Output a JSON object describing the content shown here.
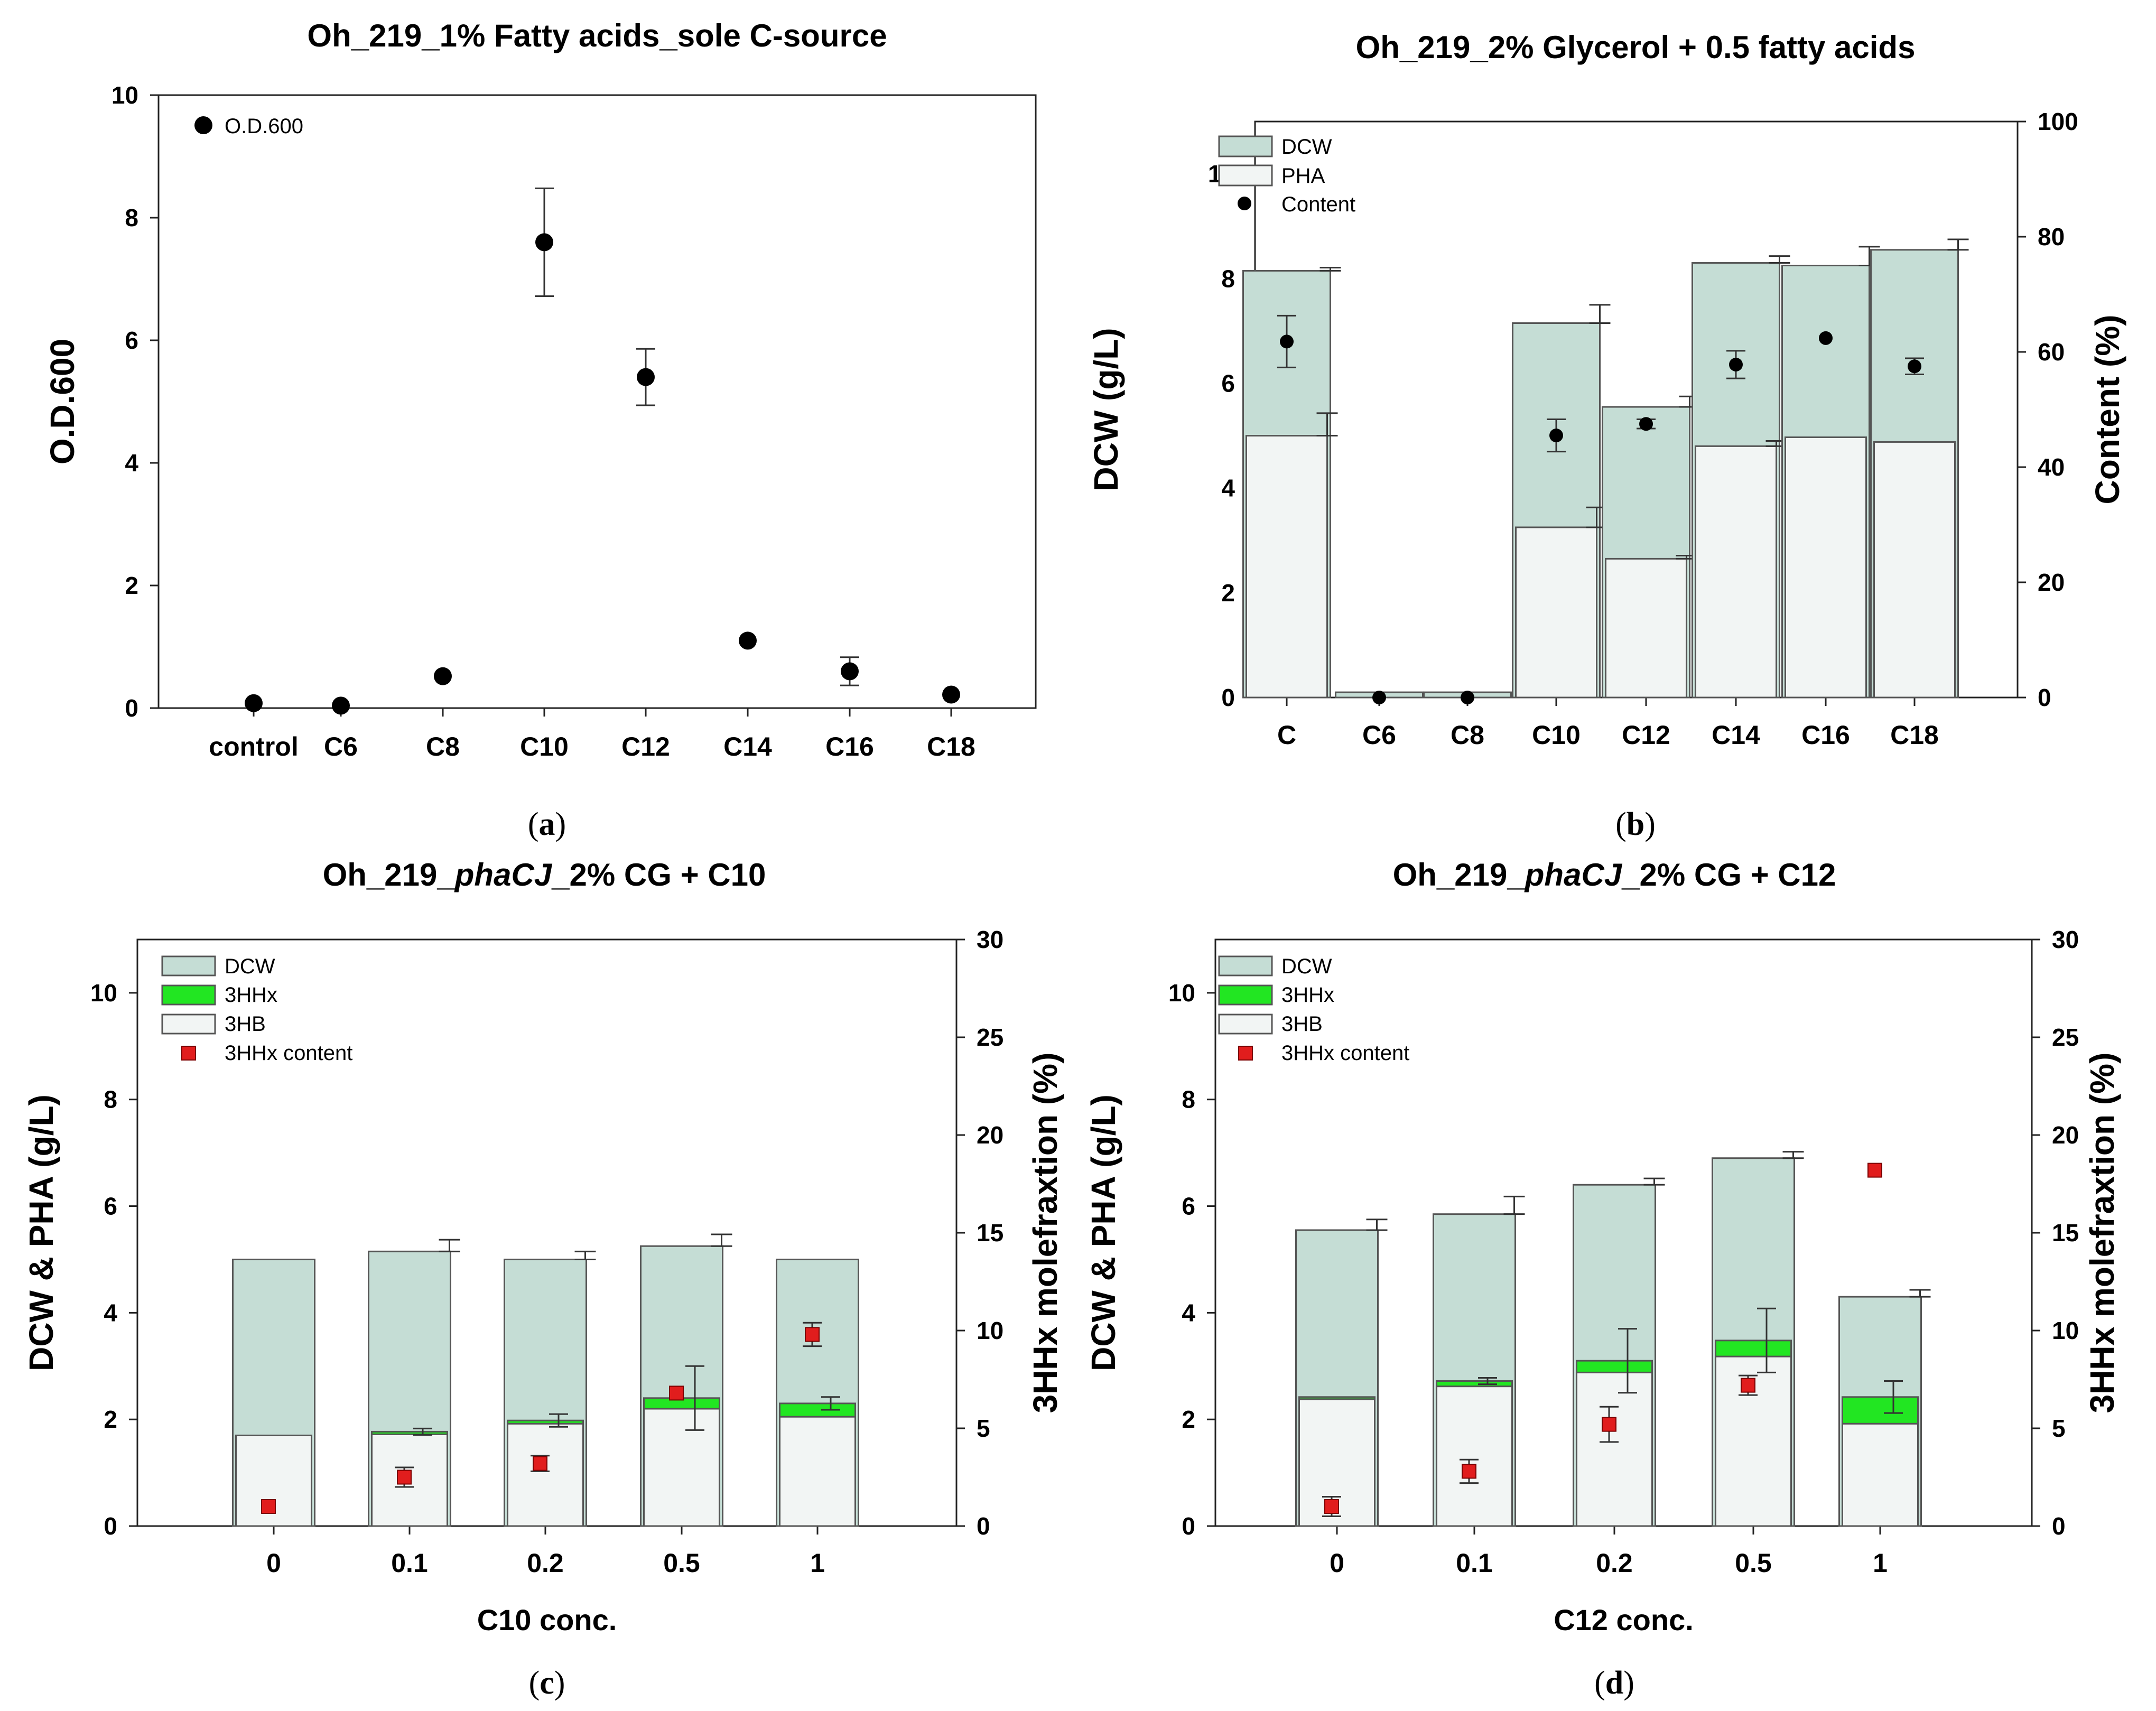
{
  "chart_data": [
    {
      "id": "a",
      "type": "scatter",
      "title": "Oh_219_1% Fatty acids_sole C-source",
      "caption": {
        "open": "(",
        "letter": "a",
        "close": ")"
      },
      "ylabel": "O.D.600",
      "xlabel": "",
      "ylim": [
        0,
        10
      ],
      "yticks": [
        "0",
        "2",
        "4",
        "6",
        "8",
        "10"
      ],
      "categories": [
        "control",
        "C6",
        "C8",
        "C10",
        "C12",
        "C14",
        "C16",
        "C18"
      ],
      "legend": [
        "O.D.600"
      ],
      "series": [
        {
          "name": "O.D.600",
          "values": [
            0.08,
            0.04,
            0.52,
            7.6,
            5.4,
            1.1,
            0.6,
            0.22
          ],
          "errors": [
            0.05,
            0.03,
            0.07,
            0.88,
            0.46,
            0.06,
            0.23,
            0.04
          ]
        }
      ]
    },
    {
      "id": "b",
      "type": "bar",
      "title": "Oh_219_2% Glycerol + 0.5 fatty acids",
      "caption": {
        "open": "(",
        "letter": "b",
        "close": ")"
      },
      "ylabel": "DCW (g/L)",
      "y2label": "Content (%)",
      "xlabel": "",
      "ylim": [
        0,
        11
      ],
      "y2lim": [
        0,
        100
      ],
      "yticks": [
        "0",
        "2",
        "4",
        "6",
        "8",
        "10"
      ],
      "y2ticks": [
        "0",
        "20",
        "40",
        "60",
        "80",
        "100"
      ],
      "categories": [
        "C",
        "C6",
        "C8",
        "C10",
        "C12",
        "C14",
        "C16",
        "C18"
      ],
      "legend": [
        "DCW",
        "PHA",
        "Content"
      ],
      "series": [
        {
          "name": "DCW",
          "values": [
            8.15,
            0.1,
            0.1,
            7.15,
            5.55,
            8.3,
            8.25,
            8.55
          ],
          "errors": [
            0.06,
            0,
            0,
            0.35,
            0.2,
            0.13,
            0.36,
            0.2
          ]
        },
        {
          "name": "PHA",
          "values": [
            5.0,
            0,
            0,
            3.25,
            2.65,
            4.8,
            4.97,
            4.88
          ],
          "errors": [
            0.43,
            0,
            0,
            0.38,
            0.06,
            0.1,
            0,
            0
          ]
        },
        {
          "name": "Content",
          "axis": "right",
          "values": [
            61.8,
            0,
            0,
            45.5,
            47.5,
            57.8,
            62.4,
            57.5
          ],
          "errors": [
            4.5,
            0,
            0,
            2.8,
            0.8,
            2.4,
            0,
            1.4
          ]
        }
      ]
    },
    {
      "id": "c",
      "type": "bar",
      "title_parts": [
        "Oh_219_",
        "phaCJ",
        "_2% CG + C10"
      ],
      "caption": {
        "open": "(",
        "letter": "c",
        "close": ")"
      },
      "ylabel": "DCW & PHA (g/L)",
      "y2label": "3HHx molefraxtion (%)",
      "xlabel": "C10 conc.",
      "ylim": [
        0,
        11
      ],
      "y2lim": [
        0,
        30
      ],
      "yticks": [
        "0",
        "2",
        "4",
        "6",
        "8",
        "10"
      ],
      "y2ticks": [
        "0",
        "5",
        "10",
        "15",
        "20",
        "25",
        "30"
      ],
      "categories": [
        "0",
        "0.1",
        "0.2",
        "0.5",
        "1"
      ],
      "legend": [
        "DCW",
        "3HHx",
        "3HB",
        "3HHx content"
      ],
      "series": [
        {
          "name": "DCW",
          "values": [
            5.0,
            5.15,
            5.0,
            5.25,
            5.0
          ],
          "errors": [
            0,
            0.22,
            0.15,
            0.22,
            0
          ]
        },
        {
          "name": "3HB",
          "values": [
            1.7,
            1.72,
            1.92,
            2.2,
            2.05
          ],
          "errors": [
            0,
            0,
            0,
            0.25,
            0
          ]
        },
        {
          "name": "3HHx",
          "values": [
            0,
            0.05,
            0.06,
            0.2,
            0.25
          ],
          "errors": [
            0,
            0.06,
            0.12,
            0.6,
            0.12
          ]
        },
        {
          "name": "3HHx content",
          "axis": "right",
          "values": [
            1.0,
            2.5,
            3.2,
            6.8,
            9.8
          ],
          "errors": [
            0,
            0.5,
            0.4,
            0,
            0.6
          ]
        }
      ]
    },
    {
      "id": "d",
      "type": "bar",
      "title_parts": [
        "Oh_219_",
        "phaCJ",
        "_2% CG + C12"
      ],
      "caption": {
        "open": "(",
        "letter": "d",
        "close": ")"
      },
      "ylabel": "DCW & PHA (g/L)",
      "y2label": "3HHx molefraxtion (%)",
      "xlabel": "C12 conc.",
      "ylim": [
        0,
        11
      ],
      "y2lim": [
        0,
        30
      ],
      "yticks": [
        "0",
        "2",
        "4",
        "6",
        "8",
        "10"
      ],
      "y2ticks": [
        "0",
        "5",
        "10",
        "15",
        "20",
        "25",
        "30"
      ],
      "categories": [
        "0",
        "0.1",
        "0.2",
        "0.5",
        "1"
      ],
      "legend": [
        "DCW",
        "3HHx",
        "3HB",
        "3HHx content"
      ],
      "series": [
        {
          "name": "DCW",
          "values": [
            5.55,
            5.85,
            6.4,
            6.9,
            4.3
          ],
          "errors": [
            0.2,
            0.33,
            0.12,
            0.12,
            0.13
          ]
        },
        {
          "name": "3HB",
          "values": [
            2.38,
            2.62,
            2.88,
            3.18,
            1.92
          ],
          "errors": [
            0,
            0,
            0,
            0,
            0
          ]
        },
        {
          "name": "3HHx",
          "values": [
            0.04,
            0.1,
            0.22,
            0.3,
            0.5
          ],
          "errors": [
            0,
            0.06,
            0.6,
            0.6,
            0.3
          ]
        },
        {
          "name": "3HHx content",
          "axis": "right",
          "values": [
            1.0,
            2.8,
            5.2,
            7.2,
            18.2
          ],
          "errors": [
            0.5,
            0.6,
            0.9,
            0.5,
            0
          ]
        }
      ]
    }
  ]
}
